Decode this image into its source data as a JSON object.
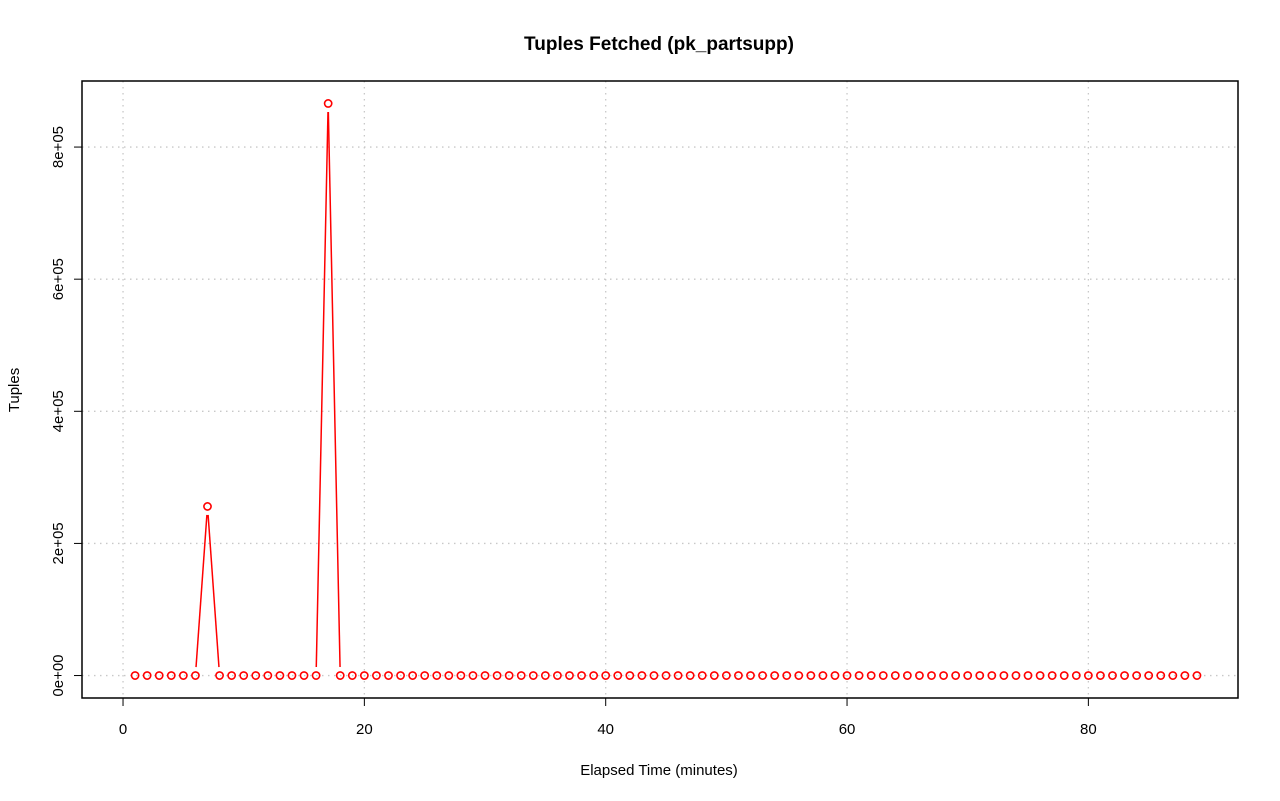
{
  "chart_data": {
    "type": "line",
    "title": "Tuples Fetched (pk_partsupp)",
    "xlabel": "Elapsed Time (minutes)",
    "ylabel": "Tuples",
    "xlim": [
      -3.4,
      92.4
    ],
    "ylim": [
      -34000,
      900000
    ],
    "x_ticks": [
      0,
      20,
      40,
      60,
      80
    ],
    "x_tick_labels": [
      "0",
      "20",
      "40",
      "60",
      "80"
    ],
    "y_ticks": [
      0,
      200000,
      400000,
      600000,
      800000
    ],
    "y_tick_labels": [
      "0e+00",
      "2e+05",
      "4e+05",
      "6e+05",
      "8e+05"
    ],
    "grid": true,
    "series": [
      {
        "color": "#ff0000",
        "marker": "open-circle",
        "x": [
          1,
          2,
          3,
          4,
          5,
          6,
          7,
          8,
          9,
          10,
          11,
          12,
          13,
          14,
          15,
          16,
          17,
          18,
          19,
          20,
          21,
          22,
          23,
          24,
          25,
          26,
          27,
          28,
          29,
          30,
          31,
          32,
          33,
          34,
          35,
          36,
          37,
          38,
          39,
          40,
          41,
          42,
          43,
          44,
          45,
          46,
          47,
          48,
          49,
          50,
          51,
          52,
          53,
          54,
          55,
          56,
          57,
          58,
          59,
          60,
          61,
          62,
          63,
          64,
          65,
          66,
          67,
          68,
          69,
          70,
          71,
          72,
          73,
          74,
          75,
          76,
          77,
          78,
          79,
          80,
          81,
          82,
          83,
          84,
          85,
          86,
          87,
          88,
          89
        ],
        "values": [
          0,
          0,
          0,
          0,
          0,
          0,
          256000,
          0,
          0,
          0,
          0,
          0,
          0,
          0,
          0,
          0,
          866000,
          0,
          0,
          0,
          0,
          0,
          0,
          0,
          0,
          0,
          0,
          0,
          0,
          0,
          0,
          0,
          0,
          0,
          0,
          0,
          0,
          0,
          0,
          0,
          0,
          0,
          0,
          0,
          0,
          0,
          0,
          0,
          0,
          0,
          0,
          0,
          0,
          0,
          0,
          0,
          0,
          0,
          0,
          0,
          0,
          0,
          0,
          0,
          0,
          0,
          0,
          0,
          0,
          0,
          0,
          0,
          0,
          0,
          0,
          0,
          0,
          0,
          0,
          0,
          0,
          0,
          0,
          0,
          0,
          0,
          0,
          0,
          0
        ]
      }
    ]
  }
}
